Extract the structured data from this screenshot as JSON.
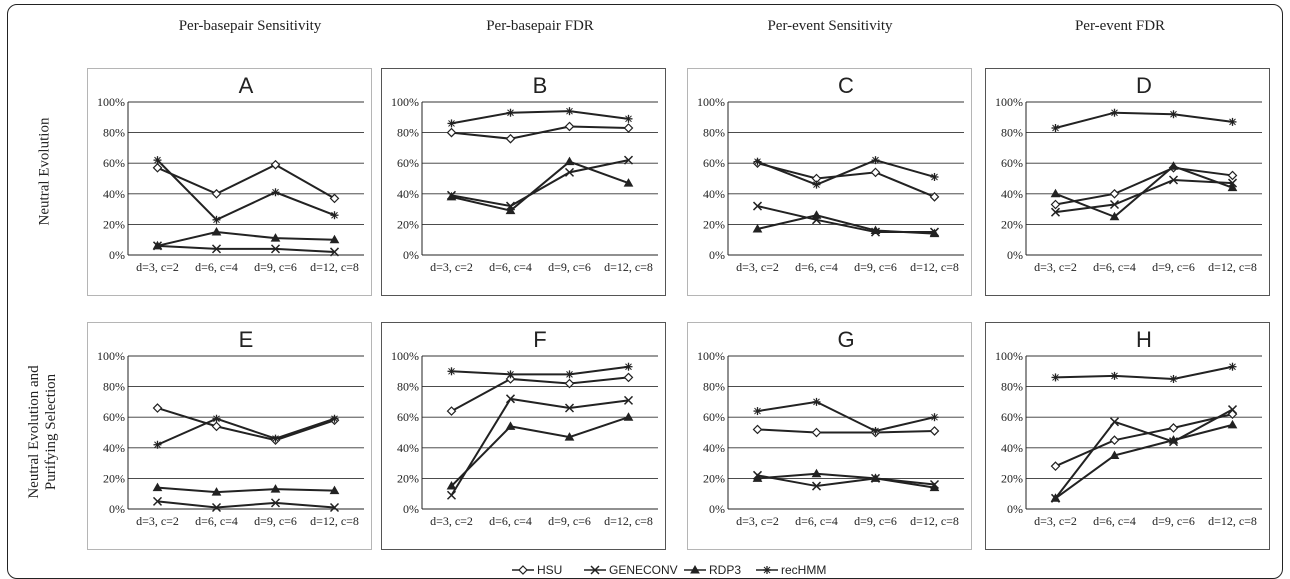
{
  "figure": {
    "column_titles": [
      "Per-basepair Sensitivity",
      "Per-basepair FDR",
      "Per-event Sensitivity",
      "Per-event FDR"
    ],
    "row_labels": [
      "Neutral Evolution",
      "Neutral Evolution and",
      "Purifying Selection"
    ]
  },
  "chart_data": [
    {
      "panel": "A",
      "type": "line",
      "categories": [
        "d=3, c=2",
        "d=6, c=4",
        "d=9, c=6",
        "d=12, c=8"
      ],
      "yticks": [
        "0%",
        "20%",
        "40%",
        "60%",
        "80%",
        "100%"
      ],
      "ylim": [
        0,
        100
      ],
      "grid": true,
      "series": [
        {
          "name": "HSU",
          "values": [
            57,
            40,
            59,
            37
          ]
        },
        {
          "name": "GENECONV",
          "values": [
            6,
            4,
            4,
            2
          ]
        },
        {
          "name": "RDP3",
          "values": [
            6,
            15,
            11,
            10
          ]
        },
        {
          "name": "recHMM",
          "values": [
            62,
            23,
            41,
            26
          ]
        }
      ]
    },
    {
      "panel": "B",
      "type": "line",
      "categories": [
        "d=3, c=2",
        "d=6, c=4",
        "d=9, c=6",
        "d=12, c=8"
      ],
      "yticks": [
        "0%",
        "20%",
        "40%",
        "60%",
        "80%",
        "100%"
      ],
      "ylim": [
        0,
        100
      ],
      "grid": true,
      "series": [
        {
          "name": "HSU",
          "values": [
            80,
            76,
            84,
            83
          ]
        },
        {
          "name": "GENECONV",
          "values": [
            39,
            32,
            54,
            62
          ]
        },
        {
          "name": "RDP3",
          "values": [
            38,
            29,
            61,
            47
          ]
        },
        {
          "name": "recHMM",
          "values": [
            86,
            93,
            94,
            89
          ]
        }
      ]
    },
    {
      "panel": "C",
      "type": "line",
      "categories": [
        "d=3, c=2",
        "d=6, c=4",
        "d=9, c=6",
        "d=12, c=8"
      ],
      "yticks": [
        "0%",
        "20%",
        "40%",
        "60%",
        "80%",
        "100%"
      ],
      "ylim": [
        0,
        100
      ],
      "grid": true,
      "series": [
        {
          "name": "HSU",
          "values": [
            60,
            50,
            54,
            38
          ]
        },
        {
          "name": "GENECONV",
          "values": [
            32,
            23,
            15,
            15
          ]
        },
        {
          "name": "RDP3",
          "values": [
            17,
            26,
            16,
            14
          ]
        },
        {
          "name": "recHMM",
          "values": [
            61,
            46,
            62,
            51
          ]
        }
      ]
    },
    {
      "panel": "D",
      "type": "line",
      "categories": [
        "d=3, c=2",
        "d=6, c=4",
        "d=9, c=6",
        "d=12, c=8"
      ],
      "yticks": [
        "0%",
        "20%",
        "40%",
        "60%",
        "80%",
        "100%"
      ],
      "ylim": [
        0,
        100
      ],
      "grid": true,
      "series": [
        {
          "name": "HSU",
          "values": [
            33,
            40,
            57,
            52
          ]
        },
        {
          "name": "GENECONV",
          "values": [
            28,
            33,
            49,
            47
          ]
        },
        {
          "name": "RDP3",
          "values": [
            40,
            25,
            58,
            44
          ]
        },
        {
          "name": "recHMM",
          "values": [
            83,
            93,
            92,
            87
          ]
        }
      ]
    },
    {
      "panel": "E",
      "type": "line",
      "categories": [
        "d=3, c=2",
        "d=6, c=4",
        "d=9, c=6",
        "d=12, c=8"
      ],
      "yticks": [
        "0%",
        "20%",
        "40%",
        "60%",
        "80%",
        "100%"
      ],
      "ylim": [
        0,
        100
      ],
      "grid": true,
      "series": [
        {
          "name": "HSU",
          "values": [
            66,
            54,
            45,
            58
          ]
        },
        {
          "name": "GENECONV",
          "values": [
            5,
            1,
            4,
            1
          ]
        },
        {
          "name": "RDP3",
          "values": [
            14,
            11,
            13,
            12
          ]
        },
        {
          "name": "recHMM",
          "values": [
            42,
            59,
            46,
            59
          ]
        }
      ]
    },
    {
      "panel": "F",
      "type": "line",
      "categories": [
        "d=3, c=2",
        "d=6, c=4",
        "d=9, c=6",
        "d=12, c=8"
      ],
      "yticks": [
        "0%",
        "20%",
        "40%",
        "60%",
        "80%",
        "100%"
      ],
      "ylim": [
        0,
        100
      ],
      "grid": true,
      "series": [
        {
          "name": "HSU",
          "values": [
            64,
            85,
            82,
            86
          ]
        },
        {
          "name": "GENECONV",
          "values": [
            9,
            72,
            66,
            71
          ]
        },
        {
          "name": "RDP3",
          "values": [
            15,
            54,
            47,
            60
          ]
        },
        {
          "name": "recHMM",
          "values": [
            90,
            88,
            88,
            93
          ]
        }
      ]
    },
    {
      "panel": "G",
      "type": "line",
      "categories": [
        "d=3, c=2",
        "d=6, c=4",
        "d=9, c=6",
        "d=12, c=8"
      ],
      "yticks": [
        "0%",
        "20%",
        "40%",
        "60%",
        "80%",
        "100%"
      ],
      "ylim": [
        0,
        100
      ],
      "grid": true,
      "series": [
        {
          "name": "HSU",
          "values": [
            52,
            50,
            50,
            51
          ]
        },
        {
          "name": "GENECONV",
          "values": [
            22,
            15,
            20,
            16
          ]
        },
        {
          "name": "RDP3",
          "values": [
            20,
            23,
            20,
            14
          ]
        },
        {
          "name": "recHMM",
          "values": [
            64,
            70,
            51,
            60
          ]
        }
      ]
    },
    {
      "panel": "H",
      "type": "line",
      "categories": [
        "d=3, c=2",
        "d=6, c=4",
        "d=9, c=6",
        "d=12, c=8"
      ],
      "yticks": [
        "0%",
        "20%",
        "40%",
        "60%",
        "80%",
        "100%"
      ],
      "ylim": [
        0,
        100
      ],
      "grid": true,
      "series": [
        {
          "name": "HSU",
          "values": [
            28,
            45,
            53,
            62
          ]
        },
        {
          "name": "GENECONV",
          "values": [
            7,
            57,
            44,
            65
          ]
        },
        {
          "name": "RDP3",
          "values": [
            7,
            35,
            45,
            55
          ]
        },
        {
          "name": "recHMM",
          "values": [
            86,
            87,
            85,
            93
          ]
        }
      ]
    }
  ],
  "legend": [
    {
      "name": "HSU",
      "marker": "diamond"
    },
    {
      "name": "GENECONV",
      "marker": "x"
    },
    {
      "name": "RDP3",
      "marker": "triangle"
    },
    {
      "name": "recHMM",
      "marker": "star"
    }
  ],
  "colors": {
    "line": "#222222",
    "grid": "#333333",
    "frame": "#222222",
    "panel_border": "#b5b5b5"
  }
}
